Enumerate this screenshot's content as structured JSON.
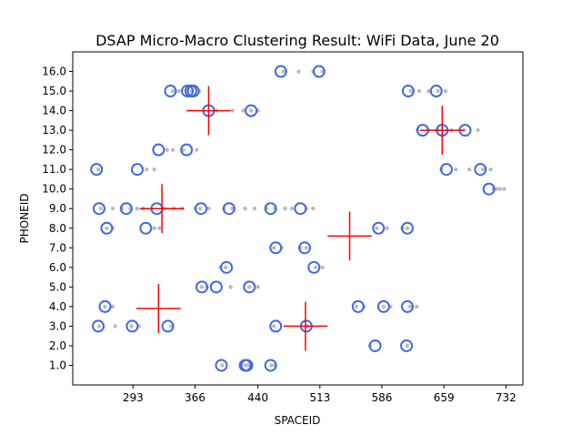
{
  "chart_data": {
    "type": "scatter",
    "title": "DSAP Micro-Macro Clustering Result: WiFi Data, June 20",
    "xlabel": "SPACEID",
    "ylabel": "PHONEID",
    "xlim": [
      222,
      752
    ],
    "ylim": [
      0.0,
      17.0
    ],
    "xticks": [
      293,
      366,
      440,
      513,
      586,
      659,
      732
    ],
    "yticks": [
      1.0,
      2.0,
      3.0,
      4.0,
      5.0,
      6.0,
      7.0,
      8.0,
      9.0,
      10.0,
      11.0,
      12.0,
      13.0,
      14.0,
      15.0,
      16.0
    ],
    "grid": false,
    "colors": {
      "points": "#bbbbbb",
      "micro_clusters": "#4169e1",
      "macro_clusters": "#ff0000"
    },
    "points": [
      {
        "y": 1,
        "x": [
          398,
          425,
          428,
          456,
          460
        ]
      },
      {
        "y": 2,
        "x": [
          572,
          616
        ]
      },
      {
        "y": 3,
        "x": [
          253,
          272,
          291,
          300,
          338,
          459,
          498
        ]
      },
      {
        "y": 4,
        "x": [
          260,
          269,
          556,
          565,
          588,
          596,
          619,
          627
        ]
      },
      {
        "y": 5,
        "x": [
          374,
          380,
          408,
          430,
          440
        ]
      },
      {
        "y": 6,
        "x": [
          396,
          402,
          508,
          516
        ]
      },
      {
        "y": 7,
        "x": [
          459,
          468,
          490,
          497
        ]
      },
      {
        "y": 8,
        "x": [
          262,
          269,
          318,
          324,
          580,
          592,
          610,
          616
        ]
      },
      {
        "y": 9,
        "x": [
          255,
          269,
          280,
          290,
          298,
          305,
          330,
          341,
          351,
          366,
          372,
          382,
          400,
          410,
          425,
          436,
          450,
          460,
          472,
          480,
          497,
          505
        ]
      },
      {
        "y": 10,
        "x": [
          717,
          721,
          725,
          730
        ]
      },
      {
        "y": 11,
        "x": [
          252,
          309,
          318,
          656,
          673,
          689,
          705,
          714
        ]
      },
      {
        "y": 12,
        "x": [
          333,
          340,
          352,
          368
        ]
      },
      {
        "y": 13,
        "x": [
          628,
          641,
          651,
          668,
          683,
          699
        ]
      },
      {
        "y": 14,
        "x": [
          391,
          410,
          423,
          432,
          440
        ]
      },
      {
        "y": 15,
        "x": [
          340,
          347,
          356,
          362,
          371,
          620,
          630,
          641,
          652,
          661
        ]
      },
      {
        "y": 16,
        "x": [
          470,
          488,
          505,
          516
        ]
      }
    ],
    "micro_clusters": [
      [
        397,
        1
      ],
      [
        425,
        1
      ],
      [
        427,
        1
      ],
      [
        455,
        1
      ],
      [
        578,
        2
      ],
      [
        615,
        2
      ],
      [
        252,
        3
      ],
      [
        292,
        3
      ],
      [
        334,
        3
      ],
      [
        461,
        3
      ],
      [
        497,
        3
      ],
      [
        260,
        4
      ],
      [
        558,
        4
      ],
      [
        588,
        4
      ],
      [
        616,
        4
      ],
      [
        374,
        5
      ],
      [
        391,
        5
      ],
      [
        430,
        5
      ],
      [
        403,
        6
      ],
      [
        506,
        6
      ],
      [
        461,
        7
      ],
      [
        495,
        7
      ],
      [
        262,
        8
      ],
      [
        308,
        8
      ],
      [
        582,
        8
      ],
      [
        616,
        8
      ],
      [
        253,
        9
      ],
      [
        285,
        9
      ],
      [
        321,
        9
      ],
      [
        373,
        9
      ],
      [
        406,
        9
      ],
      [
        455,
        9
      ],
      [
        490,
        9
      ],
      [
        712,
        10
      ],
      [
        250,
        11
      ],
      [
        298,
        11
      ],
      [
        662,
        11
      ],
      [
        702,
        11
      ],
      [
        323,
        12
      ],
      [
        356,
        12
      ],
      [
        634,
        13
      ],
      [
        657,
        13
      ],
      [
        684,
        13
      ],
      [
        382,
        14
      ],
      [
        432,
        14
      ],
      [
        337,
        15
      ],
      [
        357,
        15
      ],
      [
        361,
        15
      ],
      [
        364,
        15
      ],
      [
        617,
        15
      ],
      [
        650,
        15
      ],
      [
        467,
        16
      ],
      [
        512,
        16
      ]
    ],
    "macro_clusters": [
      {
        "x": 327,
        "y": 9,
        "dx": 26,
        "dy": 1.25
      },
      {
        "x": 382,
        "y": 14,
        "dx": 26,
        "dy": 1.25
      },
      {
        "x": 548,
        "y": 7.6,
        "dx": 26,
        "dy": 1.25
      },
      {
        "x": 657,
        "y": 13,
        "dx": 26,
        "dy": 1.25
      },
      {
        "x": 323,
        "y": 3.9,
        "dx": 26,
        "dy": 1.25
      },
      {
        "x": 496,
        "y": 3.0,
        "dx": 26,
        "dy": 1.25
      }
    ]
  }
}
